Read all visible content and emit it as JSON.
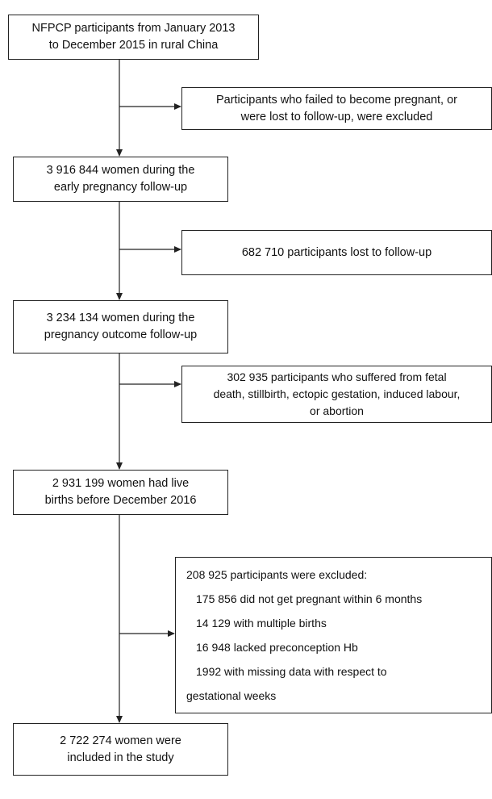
{
  "nodes": [
    {
      "lines": [
        "NFPCP participants from January 2013",
        "to December 2015 in rural China"
      ]
    },
    {
      "lines": [
        "3 916 844 women during the",
        "early pregnancy follow-up"
      ]
    },
    {
      "lines": [
        "3 234 134 women during the",
        "pregnancy outcome follow-up"
      ]
    },
    {
      "lines": [
        "2 931 199 women had live",
        "births before December 2016"
      ]
    },
    {
      "lines": [
        "2 722 274 women were",
        "included in the study"
      ]
    }
  ],
  "exclusions": [
    {
      "lines": [
        "Participants who failed to become pregnant, or",
        "were lost to follow-up, were excluded"
      ]
    },
    {
      "lines": [
        "682 710 participants lost to follow-up"
      ]
    },
    {
      "lines": [
        "302 935 participants who suffered from fetal",
        "death, stillbirth, ectopic gestation, induced labour,",
        "or abortion"
      ]
    },
    {
      "title": "208 925 participants were excluded:",
      "items": [
        "175 856 did not get pregnant within 6 months",
        "14 129 with multiple births",
        "16 948 lacked preconception Hb",
        "1992 with missing data with respect to",
        "gestational weeks"
      ]
    }
  ]
}
